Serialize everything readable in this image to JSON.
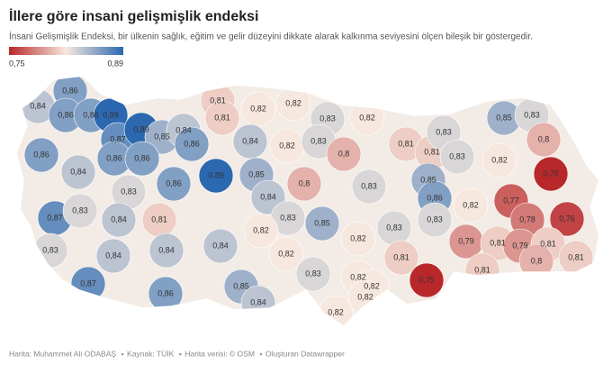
{
  "header": {
    "title": "İllere göre insani gelişmişlik endeksi",
    "subtitle": "İnsani Gelişmişlik Endeksi, bir ülkenin sağlık, eğitim ve gelir düzeyini dikkate alarak kalkınma seviyesini ölçen bileşik bir göstergedir."
  },
  "legend": {
    "min": {
      "value": 0.75,
      "label": "0,75"
    },
    "max": {
      "value": 0.89,
      "label": "0,89"
    },
    "colors": [
      "#b8282b",
      "#f6e8de",
      "#2b68b0"
    ]
  },
  "provinces": [
    {
      "value": 0.86,
      "label": "0,86"
    },
    {
      "value": 0.84,
      "label": "0,84"
    },
    {
      "value": 0.86,
      "label": "0,86"
    },
    {
      "value": 0.86,
      "label": "0,86"
    },
    {
      "value": 0.89,
      "label": "0,89"
    },
    {
      "value": 0.87,
      "label": "0,87"
    },
    {
      "value": 0.89,
      "label": "0,89"
    },
    {
      "value": 0.85,
      "label": "0,85"
    },
    {
      "value": 0.84,
      "label": "0,84"
    },
    {
      "value": 0.86,
      "label": "0,86"
    },
    {
      "value": 0.81,
      "label": "0,81"
    },
    {
      "value": 0.81,
      "label": "0,81"
    },
    {
      "value": 0.82,
      "label": "0,82"
    },
    {
      "value": 0.82,
      "label": "0,82"
    },
    {
      "value": 0.84,
      "label": "0,84"
    },
    {
      "value": 0.82,
      "label": "0,82"
    },
    {
      "value": 0.83,
      "label": "0,83"
    },
    {
      "value": 0.83,
      "label": "0,83"
    },
    {
      "value": 0.82,
      "label": "0,82"
    },
    {
      "value": 0.8,
      "label": "0,8"
    },
    {
      "value": 0.81,
      "label": "0,81"
    },
    {
      "value": 0.81,
      "label": "0,81"
    },
    {
      "value": 0.83,
      "label": "0,83"
    },
    {
      "value": 0.83,
      "label": "0,83"
    },
    {
      "value": 0.85,
      "label": "0,85"
    },
    {
      "value": 0.83,
      "label": "0,83"
    },
    {
      "value": 0.82,
      "label": "0,82"
    },
    {
      "value": 0.8,
      "label": "0,8"
    },
    {
      "value": 0.86,
      "label": "0,86"
    },
    {
      "value": 0.84,
      "label": "0,84"
    },
    {
      "value": 0.86,
      "label": "0,86"
    },
    {
      "value": 0.86,
      "label": "0,86"
    },
    {
      "value": 0.89,
      "label": "0,89"
    },
    {
      "value": 0.86,
      "label": "0,86"
    },
    {
      "value": 0.85,
      "label": "0,85"
    },
    {
      "value": 0.84,
      "label": "0,84"
    },
    {
      "value": 0.83,
      "label": "0,83"
    },
    {
      "value": 0.8,
      "label": "0,8"
    },
    {
      "value": 0.83,
      "label": "0,83"
    },
    {
      "value": 0.85,
      "label": "0,85"
    },
    {
      "value": 0.86,
      "label": "0,86"
    },
    {
      "value": 0.82,
      "label": "0,82"
    },
    {
      "value": 0.75,
      "label": "0,75"
    },
    {
      "value": 0.87,
      "label": "0,87"
    },
    {
      "value": 0.83,
      "label": "0,83"
    },
    {
      "value": 0.84,
      "label": "0,84"
    },
    {
      "value": 0.81,
      "label": "0,81"
    },
    {
      "value": 0.83,
      "label": "0,83"
    },
    {
      "value": 0.85,
      "label": "0,85"
    },
    {
      "value": 0.83,
      "label": "0,83"
    },
    {
      "value": 0.83,
      "label": "0,83"
    },
    {
      "value": 0.77,
      "label": "0,77"
    },
    {
      "value": 0.78,
      "label": "0,78"
    },
    {
      "value": 0.76,
      "label": "0,76"
    },
    {
      "value": 0.82,
      "label": "0,82"
    },
    {
      "value": 0.82,
      "label": "0,82"
    },
    {
      "value": 0.83,
      "label": "0,83"
    },
    {
      "value": 0.84,
      "label": "0,84"
    },
    {
      "value": 0.84,
      "label": "0,84"
    },
    {
      "value": 0.84,
      "label": "0,84"
    },
    {
      "value": 0.82,
      "label": "0,82"
    },
    {
      "value": 0.79,
      "label": "0,79"
    },
    {
      "value": 0.81,
      "label": "0,81"
    },
    {
      "value": 0.79,
      "label": "0,79"
    },
    {
      "value": 0.81,
      "label": "0,81"
    },
    {
      "value": 0.81,
      "label": "0,81"
    },
    {
      "value": 0.8,
      "label": "0,8"
    },
    {
      "value": 0.81,
      "label": "0,81"
    },
    {
      "value": 0.87,
      "label": "0,87"
    },
    {
      "value": 0.85,
      "label": "0,85"
    },
    {
      "value": 0.84,
      "label": "0,84"
    },
    {
      "value": 0.86,
      "label": "0,86"
    },
    {
      "value": 0.83,
      "label": "0,83"
    },
    {
      "value": 0.82,
      "label": "0,82"
    },
    {
      "value": 0.82,
      "label": "0,82"
    },
    {
      "value": 0.82,
      "label": "0,82"
    },
    {
      "value": 0.75,
      "label": "0,75"
    },
    {
      "value": 0.81,
      "label": "0,81"
    },
    {
      "value": 0.82,
      "label": "0,82"
    }
  ],
  "footer": [
    "Harita: Muhammet Ali ODABAŞ",
    "Kaynak: TÜİK",
    "Harita verisi: © OSM",
    "Oluşturan Datawrapper"
  ]
}
